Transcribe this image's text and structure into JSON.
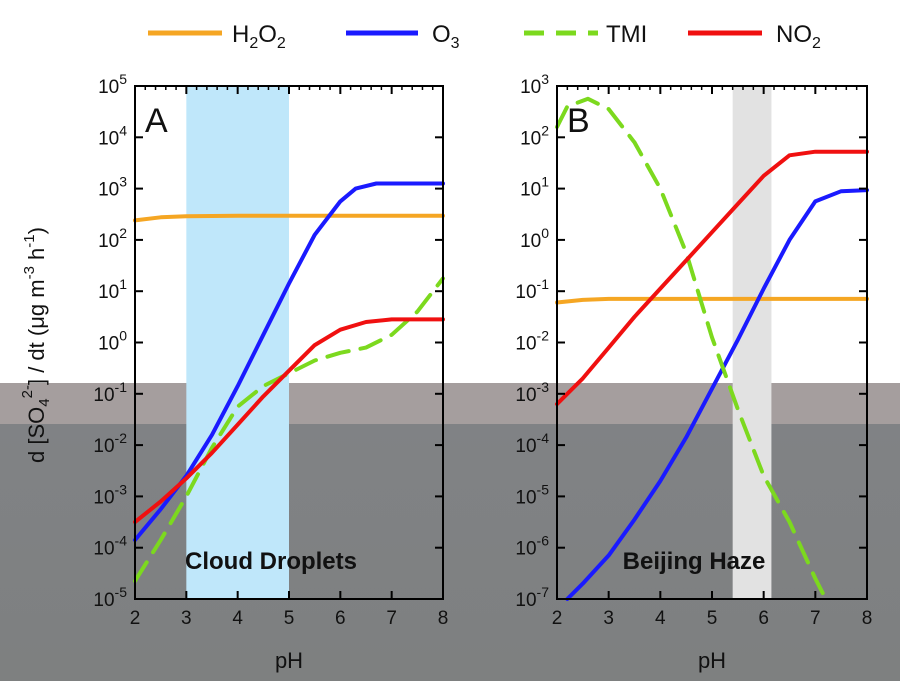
{
  "legend": {
    "h2o2": {
      "base": "H",
      "s1": "2",
      "mid": "O",
      "s2": "2",
      "color": "#f5a623"
    },
    "o3": {
      "base": "O",
      "s1": "3",
      "color": "#1a1aff"
    },
    "tmi": {
      "base": "TMI",
      "color": "#7cd91e"
    },
    "no2": {
      "base": "NO",
      "s1": "2",
      "color": "#f01010"
    }
  },
  "y_axis_title": {
    "p1": "d [SO",
    "sub": "4",
    "sup": "2-",
    "p2": "] / dt  (μg m",
    "sup2": "-3",
    "p3": " h",
    "sup3": "-1",
    "p4": ")"
  },
  "x_axis_title": "pH",
  "chart_data": [
    {
      "type": "line",
      "panel": "A",
      "region_label": "Cloud Droplets",
      "highlight": {
        "x": [
          3,
          5
        ],
        "color": "#bfe7fa"
      },
      "xlabel": "pH",
      "xlim": [
        2,
        8
      ],
      "ylim_log10": [
        -5,
        5
      ],
      "y_scale": "log",
      "x_ticks": [
        2,
        3,
        4,
        5,
        6,
        7,
        8
      ],
      "y_ticks_log10": [
        -5,
        -4,
        -3,
        -2,
        -1,
        0,
        1,
        2,
        3,
        4,
        5
      ],
      "series": [
        {
          "name": "H2O2",
          "x": [
            2,
            2.5,
            3,
            4,
            5,
            6,
            7,
            8
          ],
          "log10_y": [
            2.38,
            2.44,
            2.46,
            2.47,
            2.47,
            2.47,
            2.47,
            2.47
          ]
        },
        {
          "name": "O3",
          "x": [
            2,
            2.5,
            3,
            3.5,
            4,
            4.5,
            5,
            5.5,
            6,
            6.3,
            6.7,
            7,
            8
          ],
          "log10_y": [
            -3.85,
            -3.25,
            -2.6,
            -1.8,
            -0.85,
            0.15,
            1.15,
            2.1,
            2.75,
            3.0,
            3.1,
            3.1,
            3.1
          ]
        },
        {
          "name": "TMI",
          "x": [
            2,
            2.5,
            3,
            3.5,
            4,
            4.5,
            5,
            5.5,
            6,
            6.5,
            7,
            7.5,
            8
          ],
          "log10_y": [
            -4.65,
            -3.85,
            -3.0,
            -2.05,
            -1.25,
            -0.85,
            -0.6,
            -0.35,
            -0.2,
            -0.1,
            0.15,
            0.6,
            1.25
          ]
        },
        {
          "name": "NO2",
          "x": [
            2,
            2.5,
            3,
            3.5,
            4,
            4.5,
            5,
            5.5,
            6,
            6.5,
            7,
            8
          ],
          "log10_y": [
            -3.5,
            -3.1,
            -2.65,
            -2.15,
            -1.6,
            -1.05,
            -0.55,
            -0.05,
            0.25,
            0.4,
            0.45,
            0.45
          ]
        }
      ]
    },
    {
      "type": "line",
      "panel": "B",
      "region_label": "Beijing Haze",
      "highlight": {
        "x": [
          5.4,
          6.15
        ],
        "color": "#e2e2e2"
      },
      "xlabel": "pH",
      "xlim": [
        2,
        8
      ],
      "ylim_log10": [
        -7,
        3
      ],
      "y_scale": "log",
      "x_ticks": [
        2,
        3,
        4,
        5,
        6,
        7,
        8
      ],
      "y_ticks_log10": [
        -7,
        -6,
        -5,
        -4,
        -3,
        -2,
        -1,
        0,
        1,
        2,
        3
      ],
      "series": [
        {
          "name": "H2O2",
          "x": [
            2,
            2.5,
            3,
            4,
            5,
            6,
            7,
            8
          ],
          "log10_y": [
            -1.22,
            -1.17,
            -1.15,
            -1.15,
            -1.15,
            -1.15,
            -1.15,
            -1.15
          ]
        },
        {
          "name": "O3",
          "x": [
            2.2,
            2.5,
            3,
            3.5,
            4,
            4.5,
            5,
            5.5,
            6,
            6.5,
            7,
            7.5,
            8
          ],
          "log10_y": [
            -7.0,
            -6.7,
            -6.15,
            -5.45,
            -4.7,
            -3.85,
            -2.9,
            -1.95,
            -0.95,
            0.0,
            0.75,
            0.95,
            0.97
          ]
        },
        {
          "name": "TMI",
          "x": [
            2,
            2.2,
            2.6,
            3,
            3.5,
            4,
            4.5,
            5,
            5.5,
            6,
            6.5,
            7,
            7.2
          ],
          "log10_y": [
            2.2,
            2.6,
            2.75,
            2.55,
            1.9,
            1.0,
            -0.25,
            -1.9,
            -3.3,
            -4.6,
            -5.5,
            -6.6,
            -7.0
          ]
        },
        {
          "name": "NO2",
          "x": [
            2,
            2.5,
            3,
            3.5,
            4,
            4.5,
            5,
            5.5,
            6,
            6.5,
            7,
            7.5,
            8
          ],
          "log10_y": [
            -3.2,
            -2.7,
            -2.1,
            -1.5,
            -0.95,
            -0.4,
            0.15,
            0.7,
            1.25,
            1.65,
            1.72,
            1.72,
            1.72
          ]
        }
      ]
    }
  ]
}
